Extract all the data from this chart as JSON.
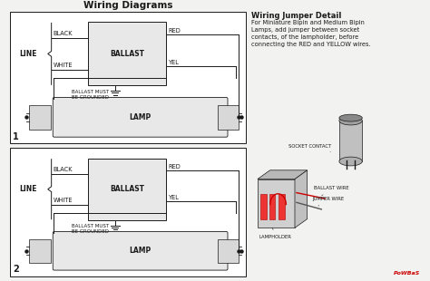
{
  "title": "Wiring Diagrams",
  "bg_color": "#f2f2f0",
  "line_color": "#1a1a1a",
  "diagram1": {
    "line_label": "LINE",
    "black_label": "BLACK",
    "white_label": "WHITE",
    "ballast_label": "BALLAST",
    "red_label": "RED",
    "yel_label": "YEL",
    "ground_label": "BALLAST MUST\nBE GROUNDED",
    "lamp_label": "LAMP",
    "number": "1"
  },
  "diagram2": {
    "line_label": "LINE",
    "black_label": "BLACK",
    "white_label": "WHITE",
    "ballast_label": "BALLAST",
    "red_label": "RED",
    "yel_label": "YEL",
    "ground_label": "BALLAST MUST\nBE GROUNDED",
    "lamp_label": "LAMP",
    "number": "2"
  },
  "jumper_title": "Wiring Jumper Detail",
  "jumper_text": "For Miniature Bipin and Medium Bipin\nLamps, add jumper between socket\ncontacts, of the lampholder, before\nconnecting the RED and YELLOW wires.",
  "socket_contact_label": "SOCKET CONTACT",
  "ballast_wire_label": "BALLAST WIRE",
  "jumper_wire_label": "JUMPER WIRE",
  "lampholder_label": "LAMPHOLDER",
  "watermark": "PoWBaS"
}
